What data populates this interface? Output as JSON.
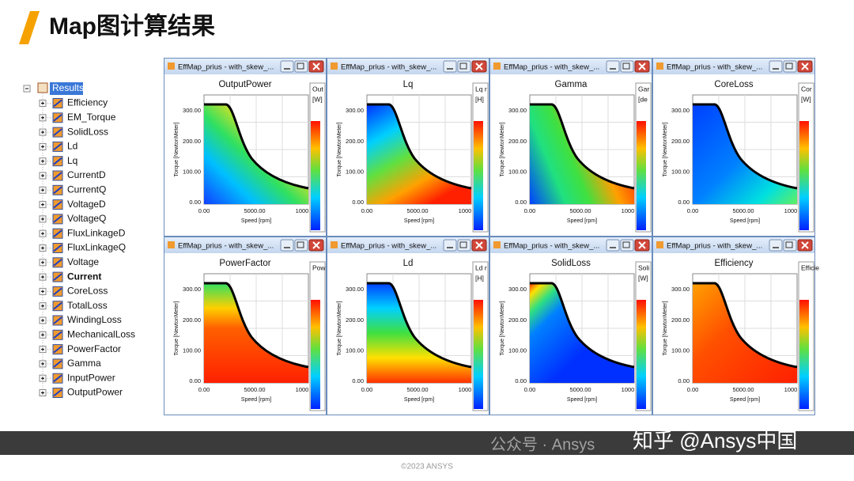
{
  "header": {
    "title": "Map图计算结果"
  },
  "tree": {
    "root": "Results",
    "items": [
      "Efficiency",
      "EM_Torque",
      "SolidLoss",
      "Ld",
      "Lq",
      "CurrentD",
      "CurrentQ",
      "VoltageD",
      "VoltageQ",
      "FluxLinkageD",
      "FluxLinkageQ",
      "Voltage",
      "Current",
      "CoreLoss",
      "TotalLoss",
      "WindingLoss",
      "MechanicalLoss",
      "PowerFactor",
      "Gamma",
      "InputPower",
      "OutputPower"
    ]
  },
  "axes": {
    "y_label": "Torque [NewtonMeter]",
    "x_label": "Speed [rpm]",
    "yticks": [
      "0.00",
      "100.00",
      "200.00",
      "300.00"
    ],
    "xticks": [
      "0.00",
      "5000.00",
      "1000"
    ]
  },
  "windows": [
    {
      "window_title": "EffMap_prius - with_skew_...",
      "plot_title": "OutputPower",
      "legend_name": "Out",
      "legend_unit": "[W]"
    },
    {
      "window_title": "EffMap_prius - with_skew_...",
      "plot_title": "Lq",
      "legend_name": "Lq r",
      "legend_unit": "[H]"
    },
    {
      "window_title": "EffMap_prius - with_skew_...",
      "plot_title": "Gamma",
      "legend_name": "Gar",
      "legend_unit": "[de"
    },
    {
      "window_title": "EffMap_prius - with_skew_...",
      "plot_title": "CoreLoss",
      "legend_name": "Cor",
      "legend_unit": "[W]"
    },
    {
      "window_title": "EffMap_prius - with_skew_...",
      "plot_title": "PowerFactor",
      "legend_name": "Pow",
      "legend_unit": ""
    },
    {
      "window_title": "EffMap_prius - with_skew_...",
      "plot_title": "Ld",
      "legend_name": "Ld r",
      "legend_unit": "[H]"
    },
    {
      "window_title": "EffMap_prius - with_skew_...",
      "plot_title": "SolidLoss",
      "legend_name": "Soli",
      "legend_unit": "[W]"
    },
    {
      "window_title": "EffMap_prius - with_skew_...",
      "plot_title": "Efficiency",
      "legend_name": "Efficie",
      "legend_unit": ""
    }
  ],
  "footer": {
    "watermark": "公众号 · Ansys",
    "brand": "知乎 @Ansys中国",
    "copyright": "©2023 ANSYS"
  }
}
